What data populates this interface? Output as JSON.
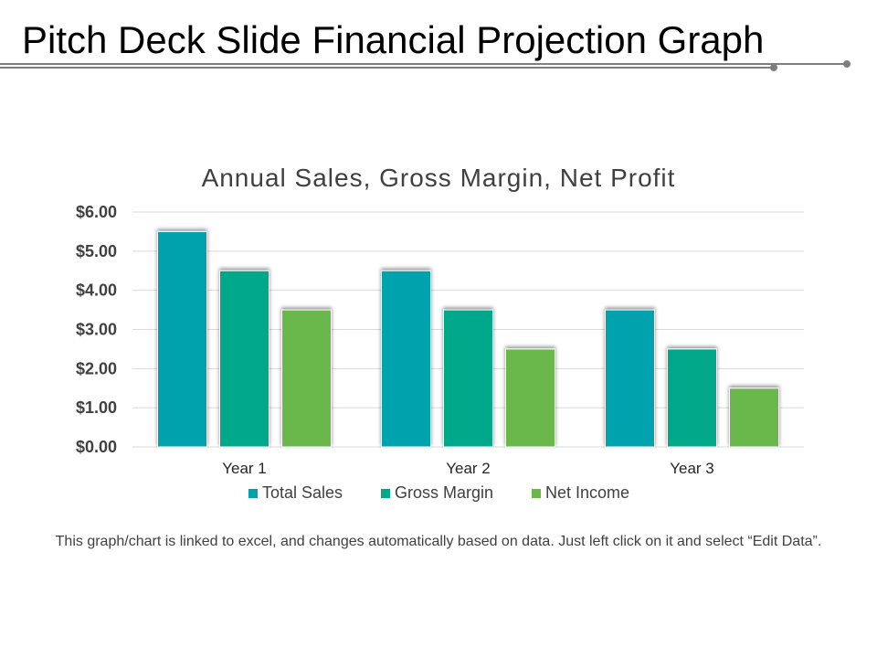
{
  "slide": {
    "title": "Pitch Deck Slide Financial Projection Graph",
    "footnote": "This graph/chart is linked to excel, and changes automatically based on data. Just left click on it and select “Edit Data”."
  },
  "colors": {
    "total_sales": "#00A3AD",
    "gross_margin": "#00A88A",
    "net_income": "#6AB84C",
    "gridline": "#D9D9D9",
    "rule": "#7F7F7F"
  },
  "chart_data": {
    "type": "bar",
    "title": "Annual Sales, Gross Margin, Net Profit",
    "categories": [
      "Year 1",
      "Year 2",
      "Year 3"
    ],
    "series": [
      {
        "name": "Total Sales",
        "values": [
          5.5,
          4.5,
          3.5
        ]
      },
      {
        "name": "Gross Margin",
        "values": [
          4.5,
          3.5,
          2.5
        ]
      },
      {
        "name": "Net Income",
        "values": [
          3.5,
          2.5,
          1.5
        ]
      }
    ],
    "ylim": [
      0,
      6
    ],
    "yticks": [
      "$0.00",
      "$1.00",
      "$2.00",
      "$3.00",
      "$4.00",
      "$5.00",
      "$6.00"
    ],
    "xlabel": "",
    "ylabel": "",
    "grid": true,
    "legend_position": "bottom"
  }
}
